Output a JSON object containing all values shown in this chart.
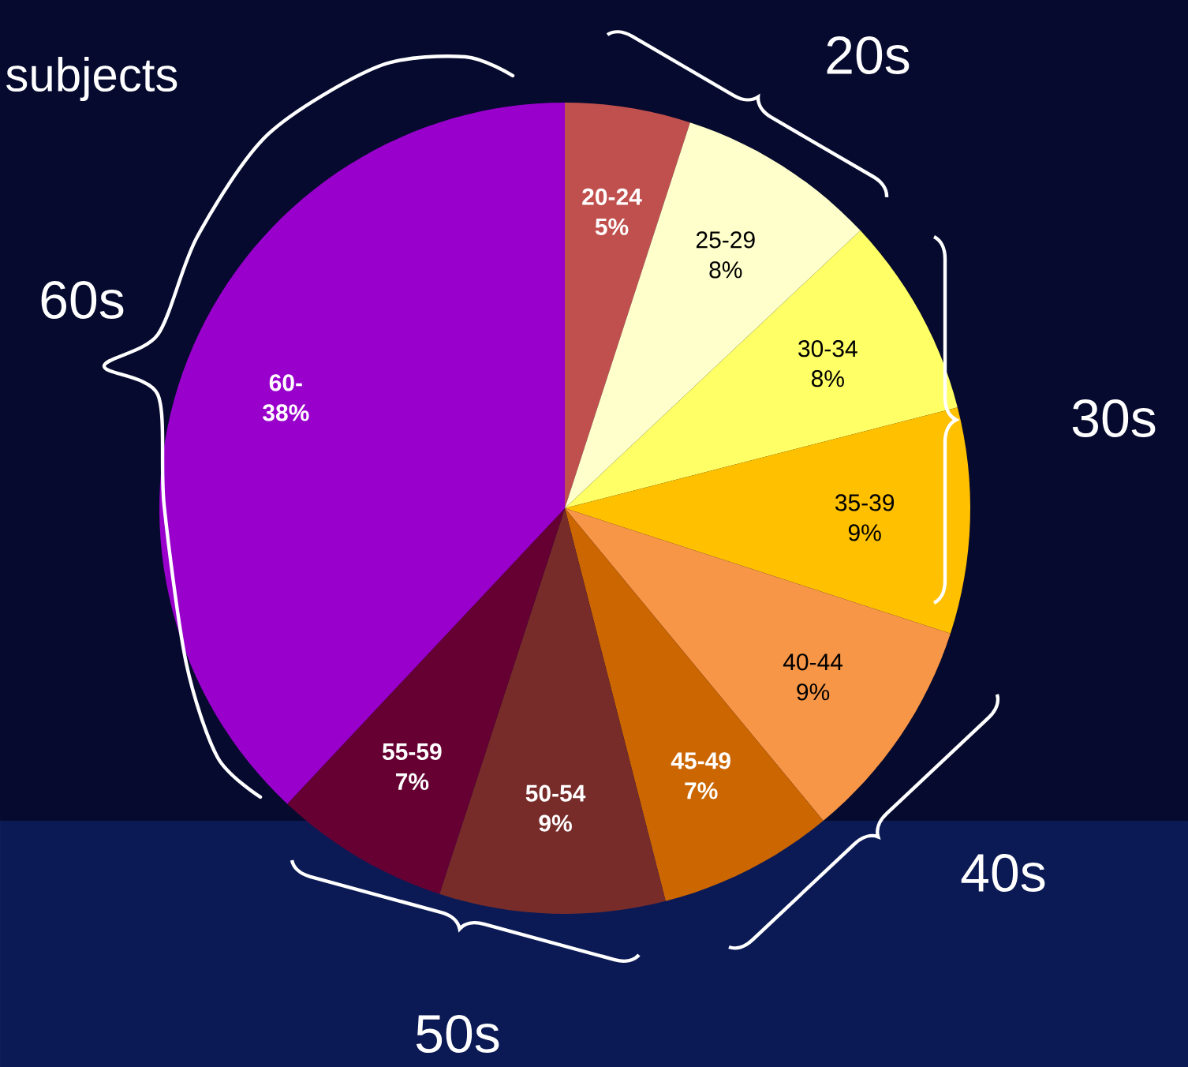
{
  "chart_data": {
    "type": "pie",
    "categories": [
      "20-24",
      "25-29",
      "30-34",
      "35-39",
      "40-44",
      "45-49",
      "50-54",
      "55-59",
      "60-"
    ],
    "values": [
      5,
      8,
      8,
      9,
      9,
      7,
      9,
      7,
      38
    ],
    "value_labels": [
      "5%",
      "8%",
      "8%",
      "9%",
      "9%",
      "7%",
      "9%",
      "7%",
      "38%"
    ],
    "colors": [
      "#c0504d",
      "#ffffcc",
      "#ffff66",
      "#ffc000",
      "#f79646",
      "#cc6600",
      "#772c2a",
      "#660033",
      "#9900cc"
    ],
    "annotations": [
      "subjects",
      "20s",
      "30s",
      "40s",
      "50s",
      "60s"
    ]
  }
}
